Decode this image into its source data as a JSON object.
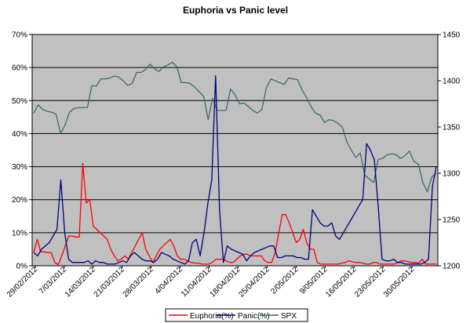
{
  "chart_data": {
    "type": "line",
    "title": "Euphoria vs Panic level",
    "xlabel": "",
    "ylabel": "",
    "y_left": {
      "min": 0,
      "max": 0.7,
      "ticks": [
        0,
        0.1,
        0.2,
        0.3,
        0.4,
        0.5,
        0.6,
        0.7
      ],
      "tick_labels": [
        "0%",
        "10%",
        "20%",
        "30%",
        "40%",
        "50%",
        "60%",
        "70%"
      ]
    },
    "y_right": {
      "min": 1200,
      "max": 1450,
      "ticks": [
        1200,
        1250,
        1300,
        1350,
        1400,
        1450
      ],
      "tick_labels": [
        "1200",
        "1250",
        "1300",
        "1350",
        "1400",
        "1450"
      ]
    },
    "x_tick_labels": [
      "29/02/2012",
      "7/03/2012",
      "14/03/2012",
      "21/03/2012",
      "28/03/2012",
      "4/04/2012",
      "11/04/2012",
      "18/04/2012",
      "25/04/2012",
      "2/05/2012",
      "9/05/2012",
      "16/05/2012",
      "23/05/2012",
      "30/05/2012"
    ],
    "grid": true,
    "legend_position": "bottom",
    "colors": {
      "plot_background": "#c0c0c0",
      "euphoria": "#ff0000",
      "panic": "#000080",
      "spx": "#336666"
    },
    "series": [
      {
        "name": "Euphoria(%)",
        "axis": "left",
        "values": [
          0.04,
          0.08,
          0.042,
          0.042,
          0.04,
          0.04,
          0.01,
          0.003,
          0.03,
          0.06,
          0.09,
          0.09,
          0.087,
          0.087,
          0.31,
          0.19,
          0.2,
          0.12,
          0.11,
          0.1,
          0.09,
          0.08,
          0.05,
          0.03,
          0.015,
          0.02,
          0.03,
          0.02,
          0.04,
          0.06,
          0.08,
          0.1,
          0.05,
          0.03,
          0.01,
          0.03,
          0.05,
          0.06,
          0.07,
          0.08,
          0.06,
          0.03,
          0.02,
          0.02,
          0.015,
          0.01,
          0.008,
          0.008,
          0.005,
          0.005,
          0.005,
          0.01,
          0.02,
          0.02,
          0.02,
          0.015,
          0.01,
          0.01,
          0.02,
          0.03,
          0.035,
          0.035,
          0.03,
          0.03,
          0.03,
          0.03,
          0.015,
          0.01,
          0.01,
          0.04,
          0.1,
          0.155,
          0.155,
          0.13,
          0.1,
          0.07,
          0.08,
          0.11,
          0.07,
          0.05,
          0.05,
          0.01,
          0.005,
          0.005,
          0.005,
          0.005,
          0.005,
          0.005,
          0.008,
          0.01,
          0.015,
          0.012,
          0.01,
          0.01,
          0.008,
          0.005,
          0.005,
          0.01,
          0.01,
          0.005,
          0.005,
          0.005,
          0.005,
          0.005,
          0.01,
          0.015,
          0.015,
          0.012,
          0.01,
          0.01,
          0.008,
          0.02,
          0.005,
          0.005,
          0.005,
          0.005
        ]
      },
      {
        "name": "Panic(%)",
        "axis": "left",
        "values": [
          0.04,
          0.03,
          0.05,
          0.06,
          0.07,
          0.09,
          0.11,
          0.26,
          0.1,
          0.02,
          0.01,
          0.01,
          0.01,
          0.01,
          0.015,
          0.005,
          0.015,
          0.01,
          0.01,
          0.005,
          0.005,
          0.005,
          0.01,
          0.015,
          0.01,
          0.03,
          0.04,
          0.03,
          0.02,
          0.015,
          0.015,
          0.01,
          0.02,
          0.04,
          0.035,
          0.03,
          0.02,
          0.015,
          0.01,
          0.005,
          0.015,
          0.07,
          0.08,
          0.03,
          0.1,
          0.19,
          0.26,
          0.575,
          0.17,
          0.01,
          0.06,
          0.05,
          0.045,
          0.04,
          0.035,
          0.015,
          0.03,
          0.04,
          0.045,
          0.05,
          0.055,
          0.06,
          0.06,
          0.025,
          0.025,
          0.03,
          0.03,
          0.03,
          0.025,
          0.025,
          0.02,
          0.02,
          0.17,
          0.15,
          0.13,
          0.12,
          0.12,
          0.13,
          0.09,
          0.08,
          0.1,
          0.12,
          0.14,
          0.16,
          0.18,
          0.2,
          0.37,
          0.35,
          0.32,
          0.18,
          0.02,
          0.015,
          0.015,
          0.02,
          0.01,
          0.01,
          0.005,
          0.005,
          0.005,
          0.005,
          0.005,
          0.01,
          0.02,
          0.24,
          0.3
        ]
      },
      {
        "name": "SPX",
        "axis": "right",
        "values": [
          1365,
          1374,
          1369,
          1367,
          1366,
          1364,
          1343,
          1352,
          1366,
          1370,
          1371,
          1371,
          1371,
          1395,
          1394,
          1402,
          1402,
          1403,
          1405,
          1404,
          1400,
          1395,
          1397,
          1409,
          1409,
          1412,
          1418,
          1413,
          1410,
          1415,
          1417,
          1420,
          1415,
          1398,
          1398,
          1397,
          1393,
          1388,
          1383,
          1358,
          1381,
          1368,
          1368,
          1368,
          1391,
          1385,
          1375,
          1376,
          1372,
          1368,
          1365,
          1369,
          1392,
          1402,
          1400,
          1398,
          1396,
          1403,
          1402,
          1401,
          1390,
          1382,
          1372,
          1365,
          1363,
          1355,
          1358,
          1357,
          1354,
          1350,
          1334,
          1325,
          1317,
          1322,
          1298,
          1294,
          1290,
          1315,
          1316,
          1320,
          1321,
          1320,
          1316,
          1319,
          1324,
          1313,
          1310,
          1290,
          1280,
          1296,
          1300
        ]
      }
    ]
  }
}
